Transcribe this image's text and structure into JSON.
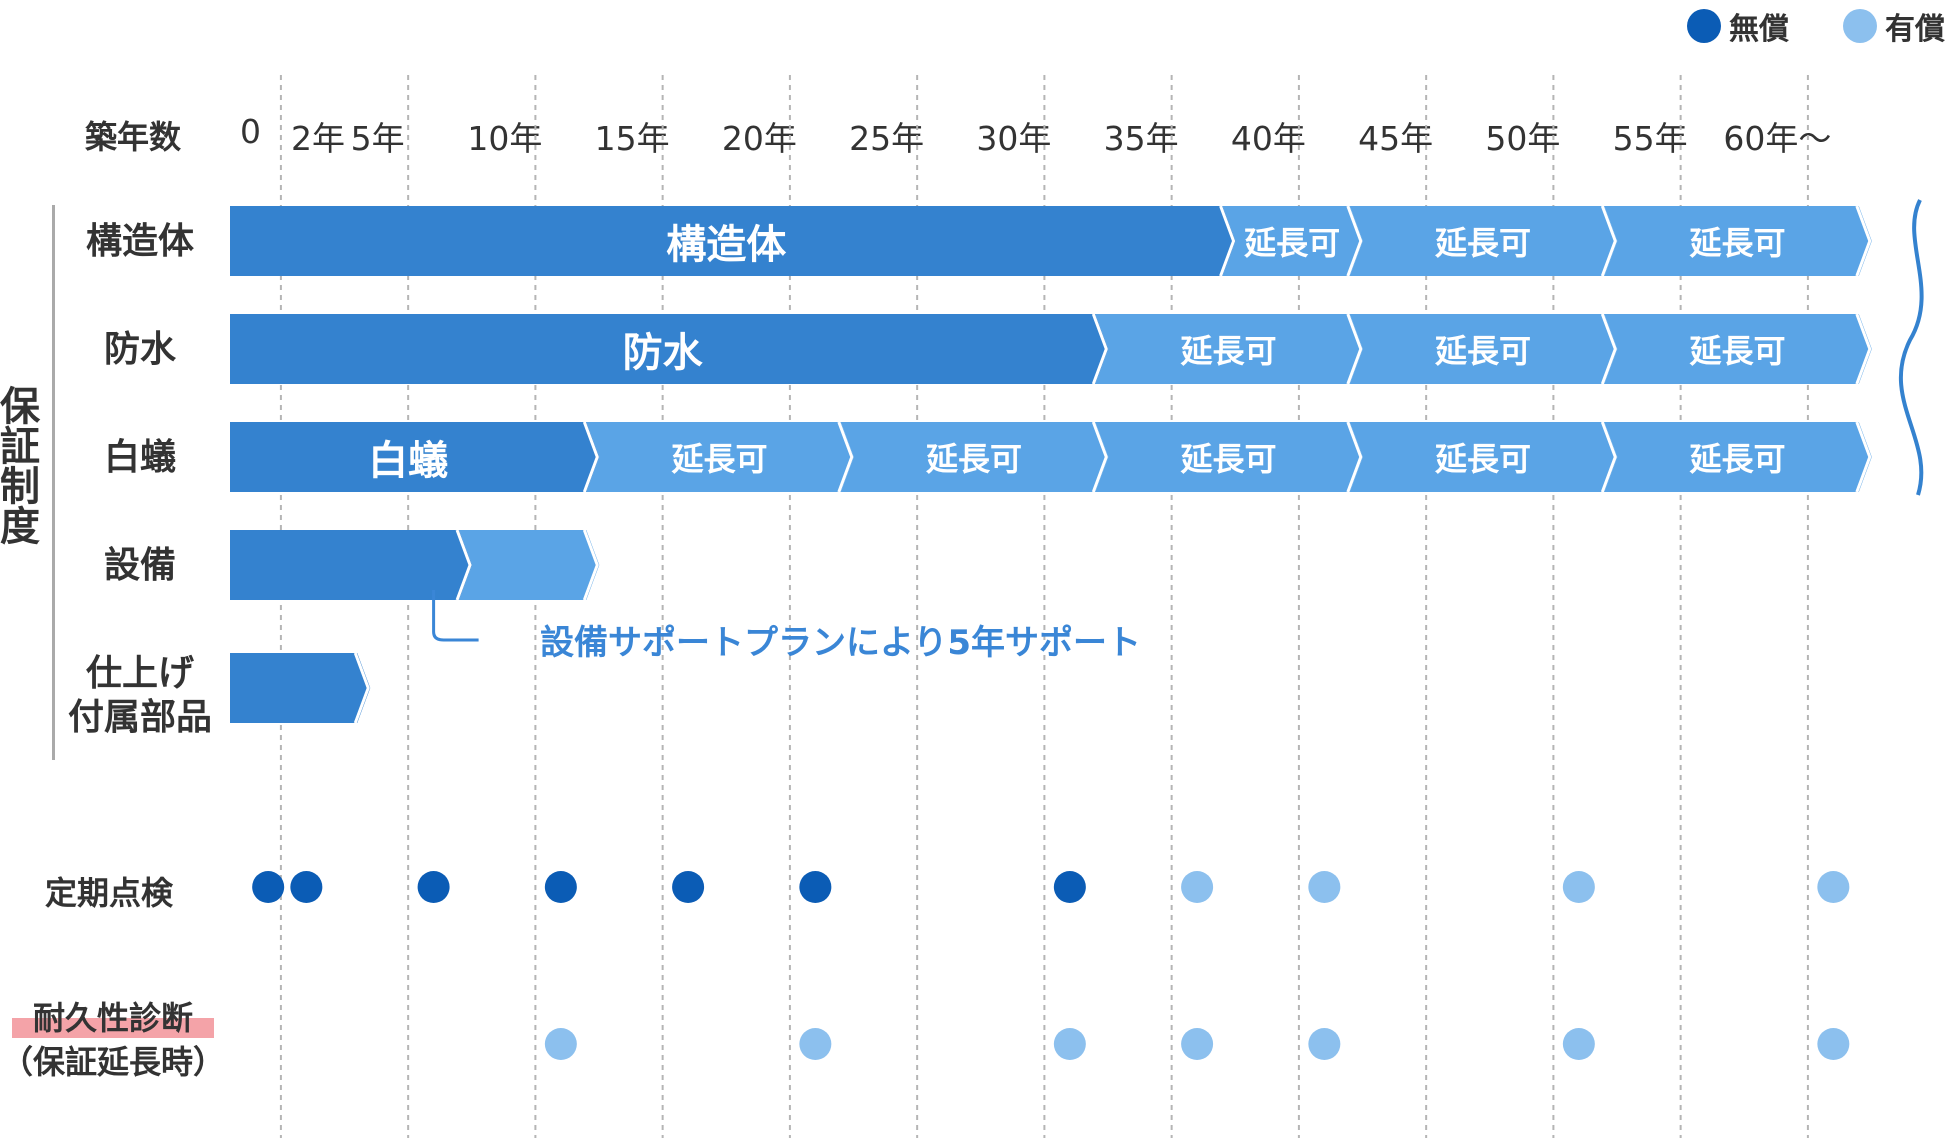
{
  "legend": {
    "free": {
      "label": "無償",
      "color": "#0b5cb5"
    },
    "paid": {
      "label": "有償",
      "color": "#8cc0ee"
    }
  },
  "colors": {
    "main_bar": "#3482cf",
    "ext_bar": "#5aa4e6",
    "chevron_line": "#ffffff",
    "grid": "#b5b5b5"
  },
  "header": {
    "row_title": "築年数",
    "years": [
      {
        "value": 0,
        "label": "0"
      },
      {
        "value": 2,
        "label": "2年"
      },
      {
        "value": 5,
        "label": "5年"
      },
      {
        "value": 10,
        "label": "10年"
      },
      {
        "value": 15,
        "label": "15年"
      },
      {
        "value": 20,
        "label": "20年"
      },
      {
        "value": 25,
        "label": "25年"
      },
      {
        "value": 30,
        "label": "30年"
      },
      {
        "value": 35,
        "label": "35年"
      },
      {
        "value": 40,
        "label": "40年"
      },
      {
        "value": 45,
        "label": "45年"
      },
      {
        "value": 50,
        "label": "50年"
      },
      {
        "value": 55,
        "label": "55年"
      },
      {
        "value": 60,
        "label": "60年〜"
      }
    ]
  },
  "group_label": "保証制度",
  "rows": [
    {
      "key": "structure",
      "label": "構造体",
      "main_label": "構造体",
      "main_end": 39,
      "extensions": [
        {
          "from": 39,
          "to": 44,
          "label": "延長可"
        },
        {
          "from": 44,
          "to": 54,
          "label": "延長可"
        },
        {
          "from": 54,
          "to": 64,
          "label": "延長可"
        }
      ]
    },
    {
      "key": "waterproof",
      "label": "防水",
      "main_label": "防水",
      "main_end": 34,
      "extensions": [
        {
          "from": 34,
          "to": 44,
          "label": "延長可"
        },
        {
          "from": 44,
          "to": 54,
          "label": "延長可"
        },
        {
          "from": 54,
          "to": 64,
          "label": "延長可"
        }
      ]
    },
    {
      "key": "termite",
      "label": "白蟻",
      "main_label": "白蟻",
      "main_end": 14,
      "extensions": [
        {
          "from": 14,
          "to": 24,
          "label": "延長可"
        },
        {
          "from": 24,
          "to": 34,
          "label": "延長可"
        },
        {
          "from": 34,
          "to": 44,
          "label": "延長可"
        },
        {
          "from": 44,
          "to": 54,
          "label": "延長可"
        },
        {
          "from": 54,
          "to": 64,
          "label": "延長可"
        }
      ]
    },
    {
      "key": "equipment",
      "label": "設備",
      "main_label": "",
      "main_end": 9,
      "extensions": [
        {
          "from": 9,
          "to": 14,
          "label": ""
        }
      ]
    },
    {
      "key": "finishing",
      "label_lines": [
        "仕上げ",
        "付属部品"
      ],
      "main_label": "",
      "main_end": 5,
      "extensions": []
    }
  ],
  "equipment_note": "設備サポートプランにより5年サポート",
  "inspections": {
    "periodic": {
      "label": "定期点検",
      "points": [
        {
          "year": 1.5,
          "type": "free"
        },
        {
          "year": 3,
          "type": "free"
        },
        {
          "year": 8,
          "type": "free"
        },
        {
          "year": 13,
          "type": "free"
        },
        {
          "year": 18,
          "type": "free"
        },
        {
          "year": 23,
          "type": "free"
        },
        {
          "year": 33,
          "type": "free"
        },
        {
          "year": 38,
          "type": "paid"
        },
        {
          "year": 43,
          "type": "paid"
        },
        {
          "year": 53,
          "type": "paid"
        },
        {
          "year": 63,
          "type": "paid"
        }
      ]
    },
    "durability": {
      "label_lines": [
        "耐久性診断",
        "（保証延長時）"
      ],
      "points": [
        {
          "year": 13,
          "type": "paid"
        },
        {
          "year": 23,
          "type": "paid"
        },
        {
          "year": 33,
          "type": "paid"
        },
        {
          "year": 38,
          "type": "paid"
        },
        {
          "year": 43,
          "type": "paid"
        },
        {
          "year": 53,
          "type": "paid"
        },
        {
          "year": 63,
          "type": "paid"
        }
      ]
    }
  }
}
